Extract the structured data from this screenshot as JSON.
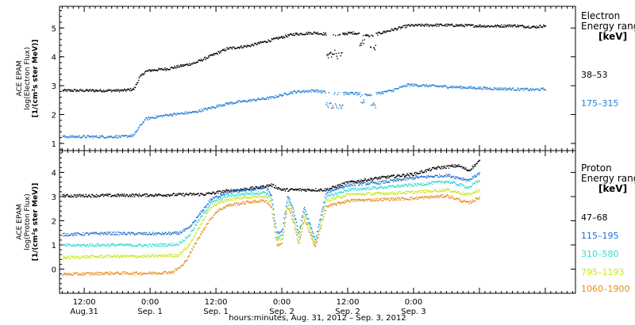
{
  "chart_data": [
    {
      "type": "scatter",
      "ylabel_lines": [
        "ACE EPAM",
        "log(Electron Flux)",
        "[1/(cm²s ster MeV)]"
      ],
      "ylim": [
        0.75,
        5.75
      ],
      "yticks": [
        1,
        2,
        3,
        4,
        5
      ],
      "xlim_hours": [
        -16.5,
        77.5
      ],
      "legend": {
        "title_line1": "Electron",
        "title_line2": "Energy range",
        "unit": "[keV]"
      },
      "series": [
        {
          "name": "38–53",
          "color": "#000000",
          "profile": [
            [
              -16,
              2.85
            ],
            [
              -5,
              2.85
            ],
            [
              -3,
              2.9
            ],
            [
              -2,
              3.3
            ],
            [
              -1,
              3.5
            ],
            [
              0,
              3.55
            ],
            [
              3,
              3.6
            ],
            [
              8,
              3.8
            ],
            [
              11,
              4.05
            ],
            [
              14,
              4.3
            ],
            [
              18,
              4.4
            ],
            [
              22,
              4.6
            ],
            [
              26,
              4.8
            ],
            [
              30,
              4.85
            ],
            [
              33,
              4.78
            ],
            [
              37,
              4.85
            ],
            [
              40,
              4.75
            ],
            [
              44,
              4.95
            ],
            [
              47,
              5.1
            ],
            [
              52,
              5.12
            ],
            [
              58,
              5.1
            ],
            [
              62,
              5.08
            ],
            [
              66,
              5.1
            ],
            [
              70,
              5.05
            ],
            [
              72,
              5.1
            ]
          ],
          "dips": [
            {
              "x": [
                32,
                35
              ],
              "y": 4.1
            },
            {
              "x": [
                38,
                39
              ],
              "y": 4.5
            },
            {
              "x": [
                40,
                41
              ],
              "y": 4.3
            }
          ]
        },
        {
          "name": "175–315",
          "color": "#1f7fd8",
          "profile": [
            [
              -16,
              1.25
            ],
            [
              -5,
              1.25
            ],
            [
              -3,
              1.3
            ],
            [
              -2,
              1.6
            ],
            [
              -1,
              1.85
            ],
            [
              0,
              1.9
            ],
            [
              3,
              2.0
            ],
            [
              8,
              2.1
            ],
            [
              11,
              2.25
            ],
            [
              14,
              2.4
            ],
            [
              18,
              2.5
            ],
            [
              22,
              2.6
            ],
            [
              26,
              2.8
            ],
            [
              30,
              2.85
            ],
            [
              33,
              2.75
            ],
            [
              37,
              2.75
            ],
            [
              40,
              2.7
            ],
            [
              44,
              2.85
            ],
            [
              47,
              3.05
            ],
            [
              52,
              3.0
            ],
            [
              58,
              2.95
            ],
            [
              62,
              2.92
            ],
            [
              66,
              2.9
            ],
            [
              70,
              2.88
            ],
            [
              72,
              2.9
            ]
          ],
          "dips": [
            {
              "x": [
                32,
                35
              ],
              "y": 2.35
            },
            {
              "x": [
                38,
                39
              ],
              "y": 2.5
            },
            {
              "x": [
                40,
                41
              ],
              "y": 2.3
            }
          ]
        }
      ]
    },
    {
      "type": "scatter",
      "ylabel_lines": [
        "ACE EPAM",
        "log(Proton Flux)",
        "[1/(cm²s ster MeV)]"
      ],
      "ylim": [
        -1,
        4.9
      ],
      "yticks": [
        0,
        1,
        2,
        3,
        4
      ],
      "xlim_hours": [
        -16.5,
        77.5
      ],
      "xticks": [
        {
          "hour": -12,
          "time": "12:00",
          "date": "Aug.31"
        },
        {
          "hour": 0,
          "time": "0:00",
          "date": "Sep. 1"
        },
        {
          "hour": 12,
          "time": "12:00",
          "date": "Sep. 1"
        },
        {
          "hour": 24,
          "time": "0:00",
          "date": "Sep. 2"
        },
        {
          "hour": 36,
          "time": "12:00",
          "date": "Sep. 2"
        },
        {
          "hour": 48,
          "time": "0:00",
          "date": "Sep. 3"
        }
      ],
      "xlabel": "hours:minutes, Aug. 31, 2012 – Sep.  3, 2012",
      "legend": {
        "title_line1": "Proton",
        "title_line2": "Energy range",
        "unit": "[keV]"
      },
      "series": [
        {
          "name": "47–68",
          "color": "#000000",
          "profile": [
            [
              -16,
              3.05
            ],
            [
              0,
              3.08
            ],
            [
              10,
              3.12
            ],
            [
              14,
              3.25
            ],
            [
              20,
              3.4
            ],
            [
              22,
              3.5
            ],
            [
              24,
              3.3
            ],
            [
              28,
              3.3
            ],
            [
              32,
              3.3
            ],
            [
              36,
              3.6
            ],
            [
              42,
              3.8
            ],
            [
              48,
              3.95
            ],
            [
              52,
              4.2
            ],
            [
              56,
              4.3
            ],
            [
              58,
              4.1
            ],
            [
              60,
              4.5
            ]
          ],
          "dips": []
        },
        {
          "name": "115–195",
          "color": "#1f6fd0",
          "profile": [
            [
              -16,
              1.45
            ],
            [
              -8,
              1.5
            ],
            [
              0,
              1.48
            ],
            [
              5,
              1.5
            ],
            [
              7,
              1.7
            ],
            [
              9,
              2.3
            ],
            [
              11,
              2.9
            ],
            [
              14,
              3.2
            ],
            [
              18,
              3.3
            ],
            [
              21,
              3.4
            ],
            [
              22,
              3.1
            ],
            [
              23,
              1.5
            ],
            [
              24,
              1.6
            ],
            [
              25,
              3.1
            ],
            [
              26,
              2.5
            ],
            [
              27,
              1.5
            ],
            [
              28,
              2.6
            ],
            [
              30,
              1.2
            ],
            [
              32,
              3.2
            ],
            [
              36,
              3.5
            ],
            [
              42,
              3.6
            ],
            [
              48,
              3.8
            ],
            [
              54,
              3.9
            ],
            [
              58,
              3.7
            ],
            [
              60,
              4.0
            ]
          ],
          "dips": []
        },
        {
          "name": "310–580",
          "color": "#33d9d2",
          "profile": [
            [
              -16,
              1.0
            ],
            [
              -8,
              1.02
            ],
            [
              0,
              1.0
            ],
            [
              5,
              1.05
            ],
            [
              7,
              1.4
            ],
            [
              9,
              2.1
            ],
            [
              11,
              2.75
            ],
            [
              14,
              3.05
            ],
            [
              18,
              3.15
            ],
            [
              21,
              3.2
            ],
            [
              22,
              2.95
            ],
            [
              23,
              1.3
            ],
            [
              24,
              1.4
            ],
            [
              25,
              2.95
            ],
            [
              26,
              2.3
            ],
            [
              27,
              1.3
            ],
            [
              28,
              2.4
            ],
            [
              30,
              1.1
            ],
            [
              32,
              3.0
            ],
            [
              36,
              3.3
            ],
            [
              42,
              3.4
            ],
            [
              48,
              3.5
            ],
            [
              54,
              3.65
            ],
            [
              58,
              3.4
            ],
            [
              60,
              3.7
            ]
          ],
          "dips": []
        },
        {
          "name": "795–1193",
          "color": "#c9e61a",
          "profile": [
            [
              -16,
              0.5
            ],
            [
              -8,
              0.55
            ],
            [
              0,
              0.55
            ],
            [
              5,
              0.6
            ],
            [
              7,
              1.0
            ],
            [
              9,
              1.8
            ],
            [
              11,
              2.6
            ],
            [
              14,
              2.9
            ],
            [
              18,
              3.0
            ],
            [
              21,
              3.05
            ],
            [
              22,
              2.8
            ],
            [
              23,
              1.2
            ],
            [
              24,
              1.3
            ],
            [
              25,
              2.8
            ],
            [
              26,
              2.2
            ],
            [
              27,
              1.2
            ],
            [
              28,
              2.3
            ],
            [
              30,
              1.0
            ],
            [
              32,
              2.85
            ],
            [
              36,
              3.1
            ],
            [
              42,
              3.15
            ],
            [
              48,
              3.2
            ],
            [
              54,
              3.3
            ],
            [
              58,
              3.1
            ],
            [
              60,
              3.3
            ]
          ],
          "dips": []
        },
        {
          "name": "1060–1900",
          "color": "#e88a1c",
          "profile": [
            [
              -16,
              -0.2
            ],
            [
              -8,
              -0.15
            ],
            [
              0,
              -0.15
            ],
            [
              4,
              -0.1
            ],
            [
              6,
              0.2
            ],
            [
              8,
              1.0
            ],
            [
              10,
              1.8
            ],
            [
              12,
              2.4
            ],
            [
              14,
              2.65
            ],
            [
              18,
              2.8
            ],
            [
              21,
              2.85
            ],
            [
              22,
              2.6
            ],
            [
              23,
              1.0
            ],
            [
              24,
              1.1
            ],
            [
              25,
              2.6
            ],
            [
              26,
              2.0
            ],
            [
              27,
              1.0
            ],
            [
              28,
              2.1
            ],
            [
              30,
              0.9
            ],
            [
              32,
              2.6
            ],
            [
              36,
              2.85
            ],
            [
              42,
              2.9
            ],
            [
              48,
              2.95
            ],
            [
              54,
              3.05
            ],
            [
              58,
              2.75
            ],
            [
              60,
              3.0
            ]
          ],
          "dips": []
        }
      ]
    }
  ]
}
